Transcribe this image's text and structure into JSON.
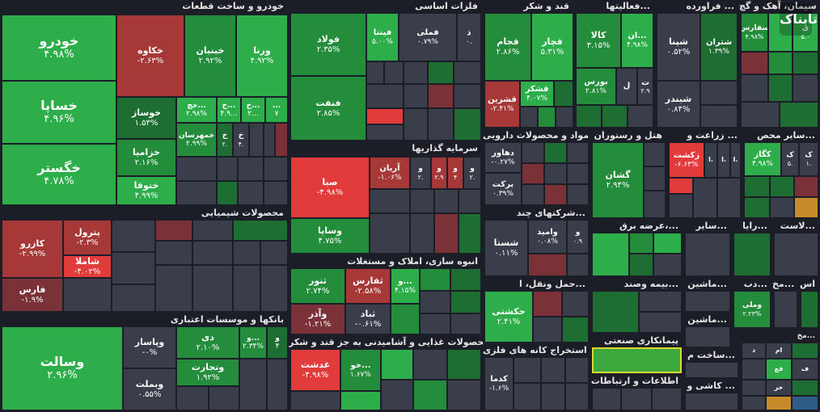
{
  "colors": {
    "up_strong": "#2eae4a",
    "up": "#238d3b",
    "up_weak": "#1e6e33",
    "neutral": "#3a3e4a",
    "down_strong": "#e23b3b",
    "down": "#a63838",
    "down_weak": "#7a3138",
    "header_bg": "#1b1e27"
  },
  "sectors": {
    "auto": "خودرو و ساخت قطعات",
    "metals": "فلزات اساسی",
    "sugar": "قند و شکر",
    "services": "فعالیتها...",
    "oil": "فراورده ...",
    "cement": "سیمان، آهک و گچ",
    "chemical": "محصولات شیمیایی",
    "investment": "سرمایه گذاریها",
    "pharma": "مواد و محصولات دارویی",
    "hotel": "هتل و رستوران",
    "agri": "زراعت و ...",
    "othermining": "سایر محص...",
    "construction": "انبوه سازی، املاک و مستغلات",
    "multi": "شرکتهای چند...",
    "power": "عرضه برق،...",
    "misc1": "سایر...",
    "misc2": "رایا...",
    "misc3": "لاست...",
    "banks": "بانکها و موسسات اعتباری",
    "food": "محصولات غذایی و آشامیدنی به جز قند و شکر",
    "transport": "حمل ونقل، ا...",
    "insurance": "بیمه وصند...",
    "machinery": "ماشین...",
    "misc4": "دب...",
    "misc5": "مخ...",
    "misc6": "اس",
    "mining": "استخراج کانه های فلزی",
    "leasing": "پیمانکاری صنعتی",
    "info": "اطلاعات و ارتباطات",
    "tech": "ماشین...",
    "build": "ساخت م...",
    "kashi": "کاشی و ...",
    "wood": "فرآورده..."
  },
  "tiles": {
    "khodro": {
      "name": "خودرو",
      "pct": "۴.۹۸%"
    },
    "khsapa": {
      "name": "خساپا",
      "pct": "۴.۹۶%"
    },
    "khgostar": {
      "name": "خگستر",
      "pct": "۴.۷۸%"
    },
    "khakave": {
      "name": "خکاوه",
      "pct": "-۲.۶۳%"
    },
    "khbahman": {
      "name": "خبنیان",
      "pct": "۲.۹۲%"
    },
    "varna": {
      "name": "ورنا",
      "pct": "۴.۹۲%"
    },
    "khavsaz": {
      "name": "خوساز",
      "pct": "۱.۵۳%"
    },
    "khzamia": {
      "name": "خزامیا",
      "pct": "۲.۱۶%"
    },
    "khtoka": {
      "name": "ختوقا",
      "pct": "۴.۹۹%"
    },
    "khch": {
      "name": "خچ...",
      "pct": "۲.۹۸%"
    },
    "khchk2": {
      "name": "خ...",
      "pct": "۴.۹..."
    },
    "khm2": {
      "name": "خ...",
      "pct": "۲..."
    },
    "khm3": {
      "name": "...",
      "pct": "۷"
    },
    "khmhrsan": {
      "name": "خمهرسان",
      "pct": "۲.۹۹%"
    },
    "khk": {
      "name": "خ",
      "pct": "۲."
    },
    "khk2": {
      "name": "خ",
      "pct": "۴."
    },
    "foolad": {
      "name": "فولاد",
      "pct": "۲.۳۵%"
    },
    "fenft": {
      "name": "فنفت",
      "pct": "۲.۸۵%"
    },
    "fintatra": {
      "name": "فیتنا",
      "pct": "۵.۰۰%"
    },
    "famli": {
      "name": "فملی",
      "pct": "۰.۷۹%"
    },
    "fkh": {
      "name": "ذ",
      "pct": "۰."
    },
    "ghajam": {
      "name": "قجام",
      "pct": "۲.۸۶%"
    },
    "ghachar": {
      "name": "قچار",
      "pct": "۵.۳۱%"
    },
    "ghashkar": {
      "name": "قشکر",
      "pct": "۴.۰۷%"
    },
    "ghshirin": {
      "name": "قشرین",
      "pct": "-۲.۴۱%"
    },
    "kala": {
      "name": "کالا",
      "pct": "۳.۱۵%"
    },
    "an": {
      "name": "ان...",
      "pct": "۴.۹۸%"
    },
    "boors": {
      "name": "بورس",
      "pct": "۲.۸۱%"
    },
    "l": {
      "name": "ل",
      "pct": ""
    },
    "t": {
      "name": "ت",
      "pct": "۲.۹"
    },
    "shpna": {
      "name": "شپنا",
      "pct": "۰.۵۲%"
    },
    "shtran": {
      "name": "شتران",
      "pct": "۱.۳۹%"
    },
    "shbandar": {
      "name": "شبندر",
      "pct": "۰.۸۴%"
    },
    "sfars": {
      "name": "سفارس",
      "pct": "۴.۹۸%"
    },
    "sq": {
      "name": "ی",
      "pct": "۵.۰"
    },
    "kazero": {
      "name": "کازرو",
      "pct": "-۲.۹۹%"
    },
    "petrol": {
      "name": "پترول",
      "pct": "-۲.۳%"
    },
    "shamla": {
      "name": "شاملا",
      "pct": "-۴.۰۲%"
    },
    "fars": {
      "name": "فارس",
      "pct": "-۱.۹%"
    },
    "sabo": {
      "name": "صبا",
      "pct": "-۴.۹۸%"
    },
    "arian": {
      "name": "آریان",
      "pct": "-۱.۰۶%"
    },
    "w1": {
      "name": "و",
      "pct": "۲."
    },
    "w2": {
      "name": "و",
      "pct": "۲.۹"
    },
    "w3": {
      "name": "و",
      "pct": "۴"
    },
    "w4": {
      "name": "و",
      "pct": "۲."
    },
    "vsapa": {
      "name": "وساپا",
      "pct": "۴.۷۵%"
    },
    "darhavar": {
      "name": "دهاور",
      "pct": "-۰.۲۷%"
    },
    "barkat": {
      "name": "برکت",
      "pct": "۰.۳۹%"
    },
    "gheshan": {
      "name": "گشان",
      "pct": "۲.۹۴%"
    },
    "zkesht": {
      "name": "زکشت",
      "pct": "-۶.۶۳%"
    },
    "z1": {
      "name": "ا.",
      "pct": ""
    },
    "z2": {
      "name": "ا.",
      "pct": ""
    },
    "z3": {
      "name": "ا.",
      "pct": ""
    },
    "kagaz": {
      "name": "کگاز",
      "pct": "۴.۹۸%"
    },
    "kk": {
      "name": "ک",
      "pct": "۵."
    },
    "kk2": {
      "name": "ک",
      "pct": "۱."
    },
    "sorat": {
      "name": "ثنور",
      "pct": "۲.۷۴%"
    },
    "sfars2": {
      "name": "ثفارس",
      "pct": "-۲.۵۸%"
    },
    "sv": {
      "name": "و...",
      "pct": "۴.۱۵%"
    },
    "vazar": {
      "name": "وآذر",
      "pct": "-۱.۲۱%"
    },
    "sabad": {
      "name": "ثباد",
      "pct": "-۰.۶۱%"
    },
    "shasta": {
      "name": "شستا",
      "pct": "۰.۱۱%"
    },
    "vamid": {
      "name": "وامید",
      "pct": "۰.۰۸%"
    },
    "vw": {
      "name": "و",
      "pct": "۰.۹"
    },
    "vsalat": {
      "name": "وسالت",
      "pct": "۲.۹۶%"
    },
    "vpasar": {
      "name": "وپاسار",
      "pct": "-۰%"
    },
    "vbmlat": {
      "name": "وبملت",
      "pct": "۰.۵۵%"
    },
    "di": {
      "name": "دی",
      "pct": "۲.۱۰%"
    },
    "vtejarat": {
      "name": "وتجارت",
      "pct": "۱.۹۲%"
    },
    "v2": {
      "name": "و...",
      "pct": "۲.۳۴%"
    },
    "v3": {
      "name": "و",
      "pct": "۴"
    },
    "ghazesht": {
      "name": "غدشت",
      "pct": "-۴.۹۸%"
    },
    "khou": {
      "name": "خو...",
      "pct": "۱.۶۷%"
    },
    "hkashti": {
      "name": "حکشتی",
      "pct": "۲.۴۱%"
    },
    "kdama": {
      "name": "کدما",
      "pct": "-۱.۶%"
    },
    "vmeli": {
      "name": "وملی",
      "pct": "۲.۲۳%"
    }
  },
  "labels": {
    "fa": "فا",
    "fo": "فع",
    "kh": "خر",
    "fe": "ف",
    "small_sabz": "مخ...",
    "small_d": "د",
    "small_am": "ام"
  },
  "watermark": "تابناک"
}
